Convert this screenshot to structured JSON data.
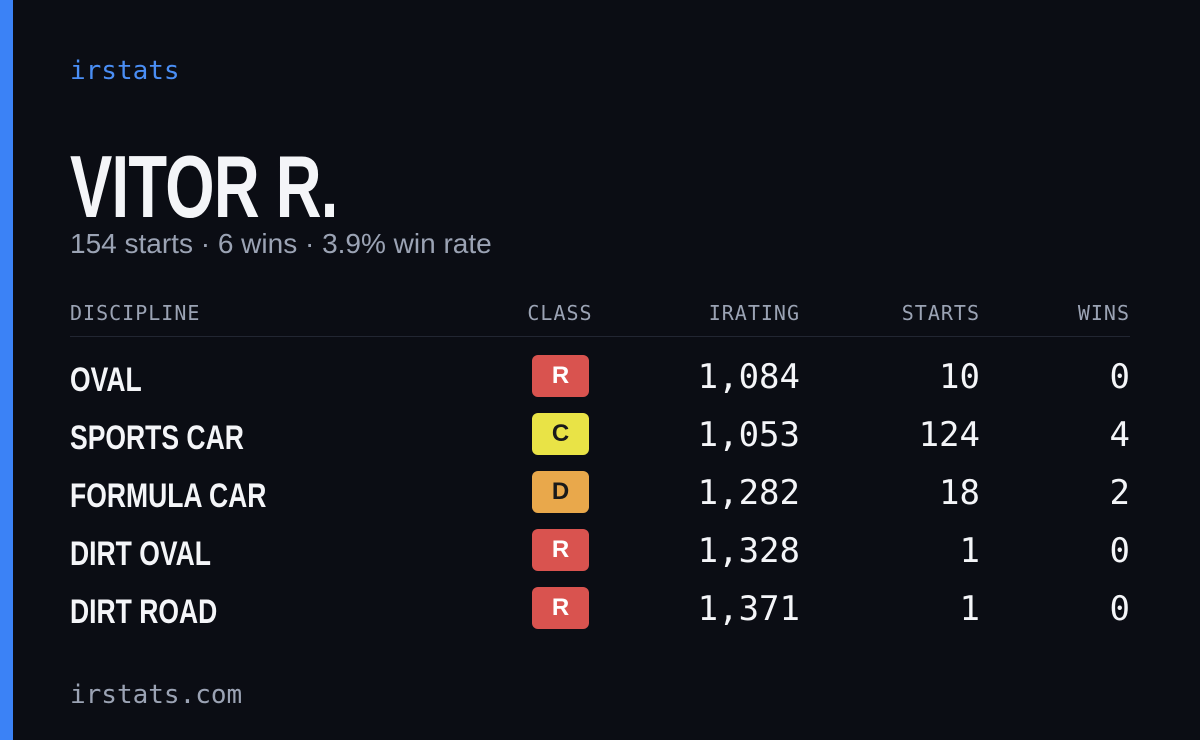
{
  "brand": "irstats",
  "driver": {
    "name": "VITOR R.",
    "summary": "154 starts · 6 wins · 3.9% win rate"
  },
  "table": {
    "headers": [
      "DISCIPLINE",
      "CLASS",
      "IRATING",
      "STARTS",
      "WINS"
    ],
    "rows": [
      [
        "OVAL",
        "R",
        "1,084",
        "10",
        "0"
      ],
      [
        "SPORTS CAR",
        "C",
        "1,053",
        "124",
        "4"
      ],
      [
        "FORMULA CAR",
        "D",
        "1,282",
        "18",
        "2"
      ],
      [
        "DIRT OVAL",
        "R",
        "1,328",
        "1",
        "0"
      ],
      [
        "DIRT ROAD",
        "R",
        "1,371",
        "1",
        "0"
      ]
    ],
    "class_colors": {
      "R": "#d9534f",
      "C": "#e9e346",
      "D": "#e9a84b"
    }
  },
  "footer": "irstats.com"
}
